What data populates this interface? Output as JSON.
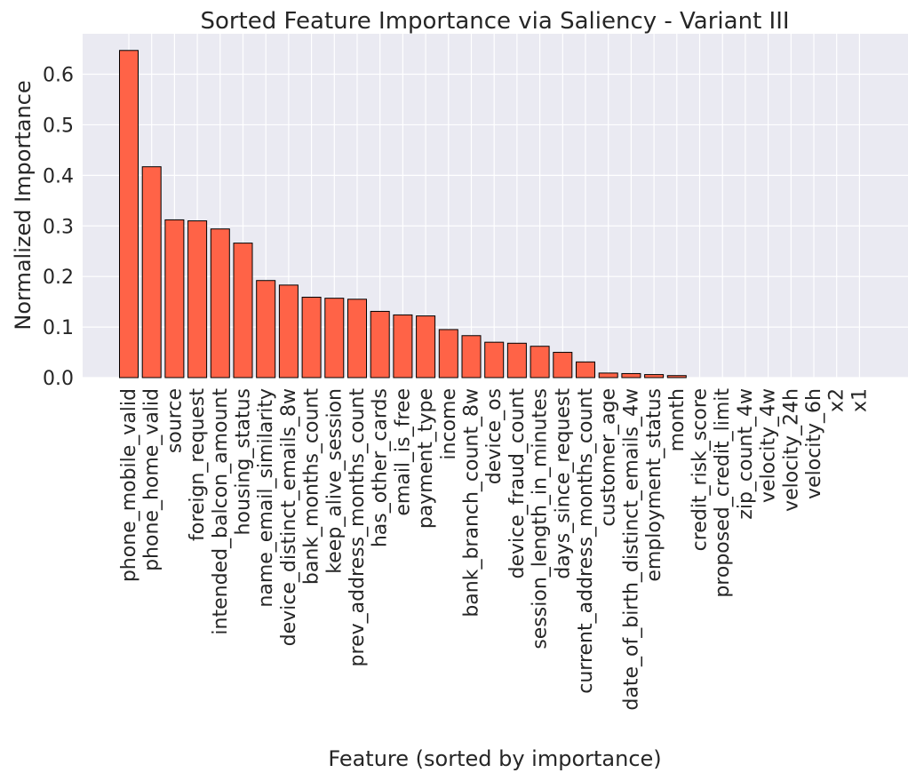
{
  "chart_data": {
    "type": "bar",
    "title": "Sorted Feature Importance via Saliency - Variant III",
    "xlabel": "Feature (sorted by importance)",
    "ylabel": "Normalized Importance",
    "ylim": [
      0,
      0.68
    ],
    "yticks": [
      "0.0",
      "0.1",
      "0.2",
      "0.3",
      "0.4",
      "0.5",
      "0.6"
    ],
    "grid": true,
    "bar_color": "#ff6347",
    "background": "#eaeaf2",
    "categories": [
      "phone_mobile_valid",
      "phone_home_valid",
      "source",
      "foreign_request",
      "intended_balcon_amount",
      "housing_status",
      "name_email_similarity",
      "device_distinct_emails_8w",
      "bank_months_count",
      "keep_alive_session",
      "prev_address_months_count",
      "has_other_cards",
      "email_is_free",
      "payment_type",
      "income",
      "bank_branch_count_8w",
      "device_os",
      "device_fraud_count",
      "session_length_in_minutes",
      "days_since_request",
      "current_address_months_count",
      "customer_age",
      "date_of_birth_distinct_emails_4w",
      "employment_status",
      "month",
      "credit_risk_score",
      "proposed_credit_limit",
      "zip_count_4w",
      "velocity_4w",
      "velocity_24h",
      "velocity_6h",
      "x2",
      "x1"
    ],
    "values": [
      0.647,
      0.417,
      0.312,
      0.31,
      0.294,
      0.266,
      0.192,
      0.183,
      0.159,
      0.157,
      0.155,
      0.131,
      0.124,
      0.122,
      0.095,
      0.083,
      0.07,
      0.068,
      0.062,
      0.05,
      0.031,
      0.009,
      0.008,
      0.006,
      0.004,
      0.0,
      0.0,
      0.0,
      0.0,
      0.0,
      0.0,
      0.0,
      0.0
    ]
  }
}
